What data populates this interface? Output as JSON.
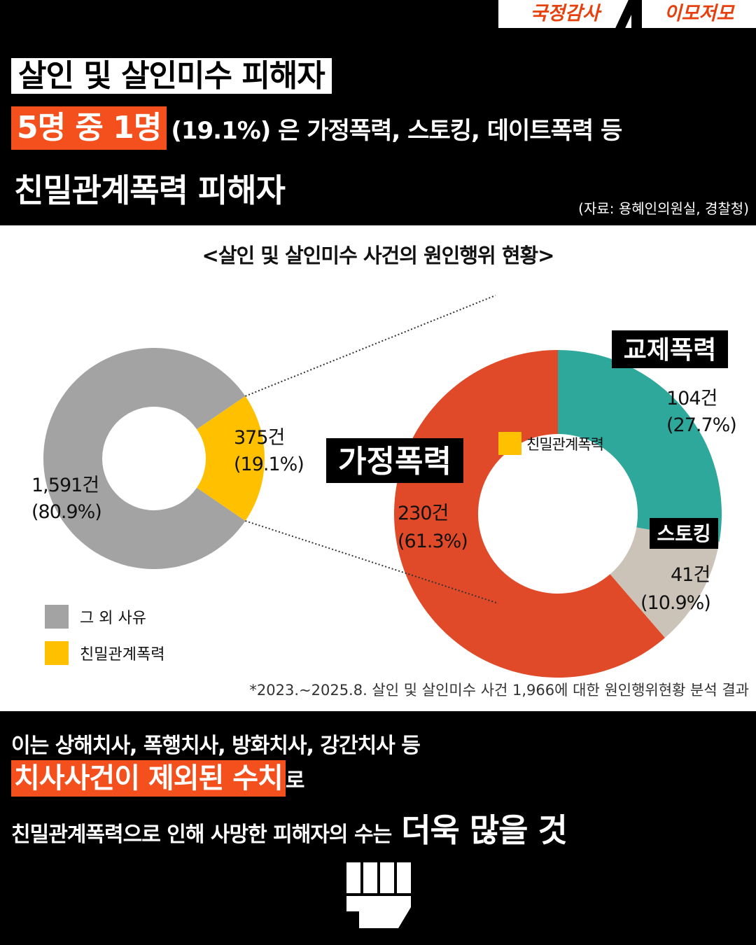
{
  "header": {
    "tag_left": "국정감사",
    "tag_right": "이모저모",
    "title_line1": "살인 및 살인미수 피해자",
    "title_line2_highlight": "5명 중 1명",
    "title_line2_rest": "(19.1%) 은 가정폭력, 스토킹, 데이트폭력 등",
    "title_line3": "친밀관계폭력 피해자",
    "source": "(자료: 용혜인의원실, 경찰청)"
  },
  "colors": {
    "accent_orange": "#f4501e",
    "gray": "#a3a3a3",
    "yellow": "#ffc000",
    "red": "#e04a28",
    "teal": "#2ea89b",
    "beige": "#cbc3b8"
  },
  "chart_title": "<살인 및 살인미수 사건의 원인행위 현황>",
  "chart_data": [
    {
      "type": "pie",
      "slices": [
        {
          "name": "그 외 사유",
          "value": 1591,
          "percent": 80.9,
          "label_count": "1,591건",
          "label_pct": "(80.9%)",
          "color": "#a3a3a3"
        },
        {
          "name": "친밀관계폭력",
          "value": 375,
          "percent": 19.1,
          "label_count": "375건",
          "label_pct": "(19.1%)",
          "color": "#ffc000"
        }
      ],
      "legend": [
        "그 외 사유",
        "친밀관계폭력"
      ]
    },
    {
      "type": "pie",
      "center_legend": "친밀관계폭력",
      "slices": [
        {
          "name": "가정폭력",
          "value": 230,
          "percent": 61.3,
          "label_count": "230건",
          "label_pct": "(61.3%)",
          "color": "#e04a28"
        },
        {
          "name": "교제폭력",
          "value": 104,
          "percent": 27.7,
          "label_count": "104건",
          "label_pct": "(27.7%)",
          "color": "#2ea89b"
        },
        {
          "name": "스토킹",
          "value": 41,
          "percent": 10.9,
          "label_count": "41건",
          "label_pct": "(10.9%)",
          "color": "#cbc3b8"
        }
      ]
    }
  ],
  "footnote": "*2023.~2025.8. 살인 및 살인미수 사건 1,966에 대한 원인행위현황 분석 결과",
  "bottom": {
    "line1": "이는 상해치사, 폭행치사, 방화치사, 강간치사 등",
    "line2_highlight": "치사사건이 제외된 수치",
    "line2_rest": "로",
    "line3_a": "친밀관계폭력으로 인해 사망한 피해자의 수는",
    "line3_b": "더욱 많을 것"
  }
}
